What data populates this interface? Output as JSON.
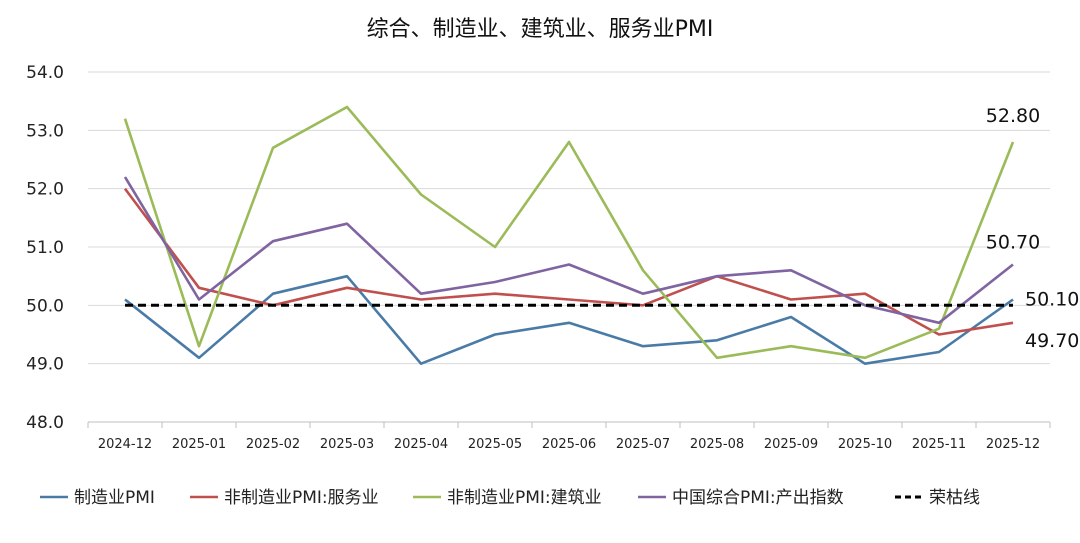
{
  "chart_data": {
    "type": "line",
    "title": "综合、制造业、建筑业、服务业PMI",
    "xlabel": "",
    "ylabel": "",
    "ylim": [
      48.0,
      54.0
    ],
    "yticks": [
      "54.0",
      "53.0",
      "52.0",
      "51.0",
      "50.0",
      "49.0",
      "48.0"
    ],
    "ytick_values": [
      54.0,
      53.0,
      52.0,
      51.0,
      50.0,
      49.0,
      48.0
    ],
    "categories": [
      "2024-12",
      "2025-01",
      "2025-02",
      "2025-03",
      "2025-04",
      "2025-05",
      "2025-06",
      "2025-07",
      "2025-08",
      "2025-09",
      "2025-10",
      "2025-11",
      "2025-12"
    ],
    "grid": true,
    "legend_position": "bottom",
    "series": [
      {
        "name": "制造业PMI",
        "color": "#4a7ba7",
        "dashed": false,
        "values": [
          50.1,
          49.1,
          50.2,
          50.5,
          49.0,
          49.5,
          49.7,
          49.3,
          49.4,
          49.8,
          49.0,
          49.2,
          50.1
        ],
        "end_label": "50.10"
      },
      {
        "name": "非制造业PMI:服务业",
        "color": "#c0504d",
        "dashed": false,
        "values": [
          52.0,
          50.3,
          50.0,
          50.3,
          50.1,
          50.2,
          50.1,
          50.0,
          50.5,
          50.1,
          50.2,
          49.5,
          49.7
        ],
        "end_label": "49.70"
      },
      {
        "name": "非制造业PMI:建筑业",
        "color": "#9bbb59",
        "dashed": false,
        "values": [
          53.2,
          49.3,
          52.7,
          53.4,
          51.9,
          51.0,
          52.8,
          50.6,
          49.1,
          49.3,
          49.1,
          49.6,
          52.8
        ],
        "end_label": "52.80"
      },
      {
        "name": "中国综合PMI:产出指数",
        "color": "#8064a2",
        "dashed": false,
        "values": [
          52.2,
          50.1,
          51.1,
          51.4,
          50.2,
          50.4,
          50.7,
          50.2,
          50.5,
          50.6,
          50.0,
          49.7,
          50.7
        ],
        "end_label": "50.70"
      },
      {
        "name": "荣枯线",
        "color": "#000000",
        "dashed": true,
        "values": [
          50.0,
          50.0,
          50.0,
          50.0,
          50.0,
          50.0,
          50.0,
          50.0,
          50.0,
          50.0,
          50.0,
          50.0,
          50.0
        ],
        "end_label": null
      }
    ]
  }
}
